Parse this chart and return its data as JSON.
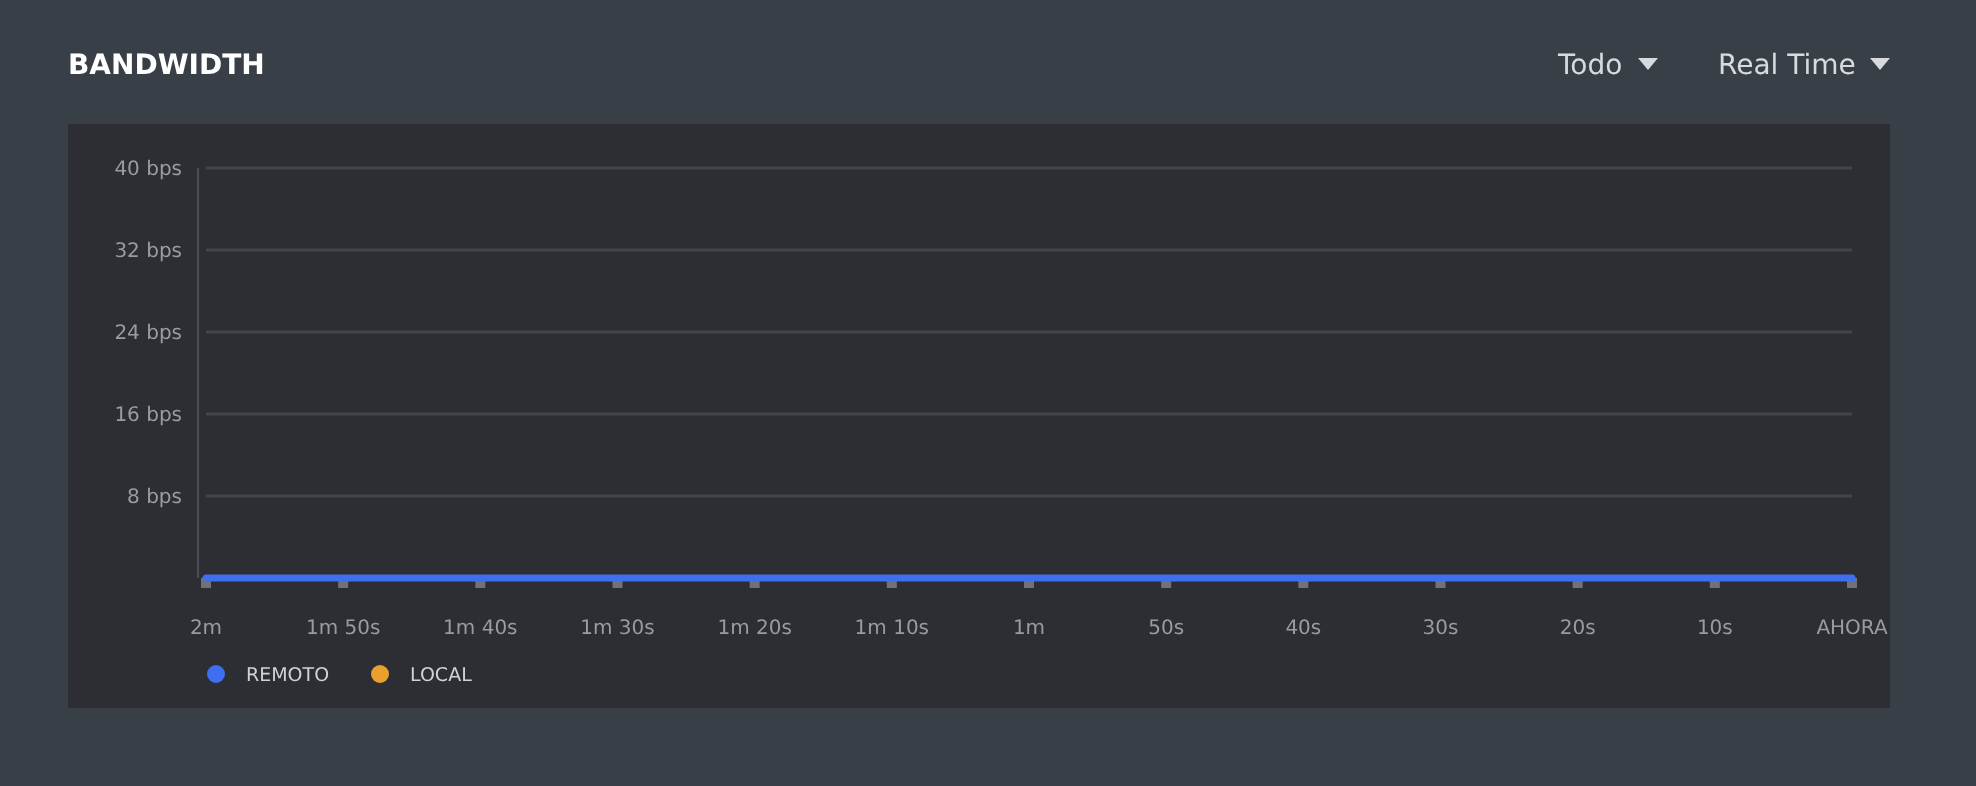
{
  "chart_data": {
    "type": "line",
    "title": "BANDWIDTH",
    "annotations": [
      "Todo",
      "Real Time"
    ],
    "categories": [
      "2m",
      "1m 50s",
      "1m 40s",
      "1m 30s",
      "1m 20s",
      "1m 10s",
      "1m",
      "50s",
      "40s",
      "30s",
      "20s",
      "10s",
      "AHORA"
    ],
    "series": [
      {
        "name": "REMOTO",
        "color": "#3f6ff0",
        "values": [
          0,
          0,
          0,
          0,
          0,
          0,
          0,
          0,
          0,
          0,
          0,
          0,
          0
        ]
      },
      {
        "name": "LOCAL",
        "color": "#e9a02c",
        "values": [
          null,
          null,
          null,
          null,
          null,
          null,
          null,
          null,
          null,
          null,
          null,
          null,
          null
        ]
      }
    ],
    "ylim": [
      0,
      40
    ],
    "yticks": [
      {
        "value": 8,
        "label": "8 bps"
      },
      {
        "value": 16,
        "label": "16 bps"
      },
      {
        "value": 24,
        "label": "24 bps"
      },
      {
        "value": 32,
        "label": "32 bps"
      },
      {
        "value": 40,
        "label": "40 bps"
      }
    ],
    "grid": "y",
    "legend": "bottom left",
    "marker": "none",
    "line_style": "solid"
  }
}
